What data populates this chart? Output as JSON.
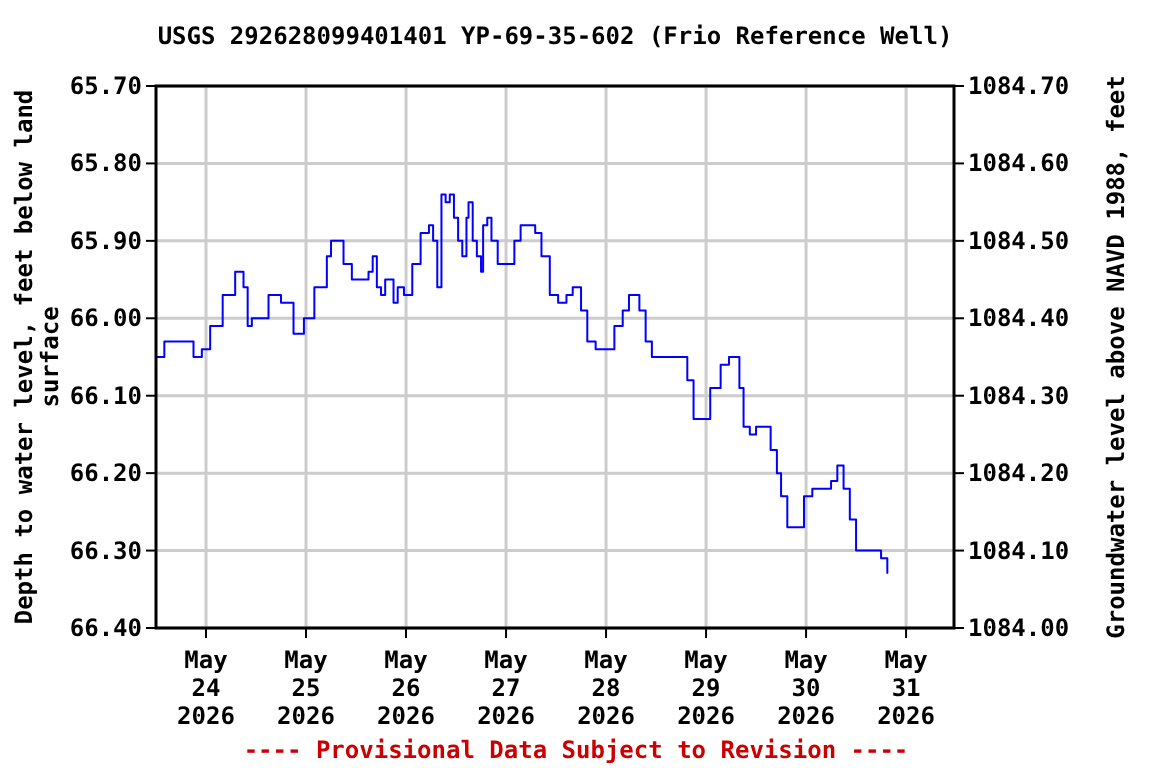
{
  "chart_data": {
    "type": "step",
    "title": "USGS 292628099401401 YP-69-35-602 (Frio Reference Well)",
    "ylabel": "Depth to water level, feet below land surface",
    "y2label": "Groundwater level above NAVD 1988, feet",
    "annotations": [
      "---- Provisional Data Subject to Revision ----"
    ],
    "series": [
      {
        "color": "#0000ff",
        "x": [
          "2026-05-23T12:00",
          "2026-05-23T14:00",
          "2026-05-23T17:00",
          "2026-05-23T19:00",
          "2026-05-23T21:00",
          "2026-05-23T23:00",
          "2026-05-24T01:00",
          "2026-05-24T04:00",
          "2026-05-24T07:00",
          "2026-05-24T08:00",
          "2026-05-24T09:00",
          "2026-05-24T10:00",
          "2026-05-24T11:00",
          "2026-05-24T13:00",
          "2026-05-24T15:00",
          "2026-05-24T16:00",
          "2026-05-24T18:00",
          "2026-05-24T21:00",
          "2026-05-24T22:00",
          "2026-05-24T23:30",
          "2026-05-25T02:00",
          "2026-05-25T05:00",
          "2026-05-25T06:00",
          "2026-05-25T08:00",
          "2026-05-25T09:00",
          "2026-05-25T11:00",
          "2026-05-25T13:00",
          "2026-05-25T15:00",
          "2026-05-25T16:00",
          "2026-05-25T17:00",
          "2026-05-25T18:00",
          "2026-05-25T19:00",
          "2026-05-25T21:00",
          "2026-05-25T22:00",
          "2026-05-25T23:30",
          "2026-05-26T01:30",
          "2026-05-26T03:30",
          "2026-05-26T05:30",
          "2026-05-26T06:30",
          "2026-05-26T07:30",
          "2026-05-26T08:30",
          "2026-05-26T09:30",
          "2026-05-26T10:30",
          "2026-05-26T11:30",
          "2026-05-26T12:30",
          "2026-05-26T13:30",
          "2026-05-26T14:30",
          "2026-05-26T15:00",
          "2026-05-26T16:00",
          "2026-05-26T17:00",
          "2026-05-26T18:00",
          "2026-05-26T18:30",
          "2026-05-26T19:30",
          "2026-05-26T20:30",
          "2026-05-26T22:00",
          "2026-05-27T00:30",
          "2026-05-27T02:00",
          "2026-05-27T03:30",
          "2026-05-27T05:00",
          "2026-05-27T07:00",
          "2026-05-27T08:30",
          "2026-05-27T10:30",
          "2026-05-27T12:30",
          "2026-05-27T14:30",
          "2026-05-27T16:00",
          "2026-05-27T18:00",
          "2026-05-27T19:30",
          "2026-05-27T21:30",
          "2026-05-27T23:30",
          "2026-05-28T02:00",
          "2026-05-28T04:00",
          "2026-05-28T05:30",
          "2026-05-28T07:00",
          "2026-05-28T08:00",
          "2026-05-28T09:30",
          "2026-05-28T11:00",
          "2026-05-28T14:00",
          "2026-05-28T16:30",
          "2026-05-28T18:00",
          "2026-05-28T19:30",
          "2026-05-28T21:00",
          "2026-05-28T23:00",
          "2026-05-29T01:00",
          "2026-05-29T03:30",
          "2026-05-29T05:30",
          "2026-05-29T06:00",
          "2026-05-29T08:00",
          "2026-05-29T09:00",
          "2026-05-29T10:30",
          "2026-05-29T12:00",
          "2026-05-29T14:00",
          "2026-05-29T15:30",
          "2026-05-29T17:00",
          "2026-05-29T18:00",
          "2026-05-29T19:30",
          "2026-05-29T21:30",
          "2026-05-29T23:30",
          "2026-05-30T01:30",
          "2026-05-30T04:00",
          "2026-05-30T06:00",
          "2026-05-30T07:30",
          "2026-05-30T09:00",
          "2026-05-30T10:30",
          "2026-05-30T12:00",
          "2026-05-30T14:00",
          "2026-05-30T16:30",
          "2026-05-30T18:00",
          "2026-05-30T19:30"
        ],
        "values": [
          66.05,
          66.03,
          66.03,
          66.03,
          66.05,
          66.04,
          66.01,
          65.97,
          65.94,
          65.94,
          65.96,
          66.01,
          66.0,
          66.0,
          65.97,
          65.97,
          65.98,
          66.02,
          66.02,
          66.0,
          65.96,
          65.92,
          65.9,
          65.9,
          65.93,
          65.95,
          65.95,
          65.94,
          65.92,
          65.96,
          65.97,
          65.95,
          65.98,
          65.96,
          65.97,
          65.93,
          65.89,
          65.88,
          65.9,
          65.96,
          65.84,
          65.85,
          65.84,
          65.87,
          65.9,
          65.92,
          65.87,
          65.85,
          65.9,
          65.92,
          65.94,
          65.88,
          65.87,
          65.9,
          65.93,
          65.93,
          65.9,
          65.88,
          65.88,
          65.89,
          65.92,
          65.97,
          65.98,
          65.97,
          65.96,
          65.99,
          66.03,
          66.04,
          66.04,
          66.01,
          65.99,
          65.97,
          65.97,
          65.99,
          66.03,
          66.05,
          66.05,
          66.05,
          66.05,
          66.08,
          66.13,
          66.13,
          66.09,
          66.06,
          66.05,
          66.05,
          66.09,
          66.14,
          66.15,
          66.14,
          66.14,
          66.17,
          66.2,
          66.23,
          66.27,
          66.27,
          66.23,
          66.22,
          66.22,
          66.21,
          66.19,
          66.22,
          66.26,
          66.3,
          66.3,
          66.3,
          66.31,
          66.33
        ]
      }
    ],
    "xlim": [
      "2026-05-23T12:00",
      "2026-05-31T11:30"
    ],
    "xticks": [
      {
        "value": "2026-05-24",
        "label": "May 24 2026"
      },
      {
        "value": "2026-05-25",
        "label": "May 25 2026"
      },
      {
        "value": "2026-05-26",
        "label": "May 26 2026"
      },
      {
        "value": "2026-05-27",
        "label": "May 27 2026"
      },
      {
        "value": "2026-05-28",
        "label": "May 28 2026"
      },
      {
        "value": "2026-05-29",
        "label": "May 29 2026"
      },
      {
        "value": "2026-05-30",
        "label": "May 30 2026"
      },
      {
        "value": "2026-05-31",
        "label": "May 31 2026"
      }
    ],
    "ylim": [
      66.4,
      65.7
    ],
    "yticks": [
      {
        "value": 65.7,
        "label": "65.70"
      },
      {
        "value": 65.8,
        "label": "65.80"
      },
      {
        "value": 65.9,
        "label": "65.90"
      },
      {
        "value": 66.0,
        "label": "66.00"
      },
      {
        "value": 66.1,
        "label": "66.10"
      },
      {
        "value": 66.2,
        "label": "66.20"
      },
      {
        "value": 66.3,
        "label": "66.30"
      },
      {
        "value": 66.4,
        "label": "66.40"
      }
    ],
    "y2lim": [
      1084.0,
      1084.7
    ],
    "y2ticks": [
      {
        "value": 1084.0,
        "label": "1084.00"
      },
      {
        "value": 1084.1,
        "label": "1084.10"
      },
      {
        "value": 1084.2,
        "label": "1084.20"
      },
      {
        "value": 1084.3,
        "label": "1084.30"
      },
      {
        "value": 1084.4,
        "label": "1084.40"
      },
      {
        "value": 1084.5,
        "label": "1084.50"
      },
      {
        "value": 1084.6,
        "label": "1084.60"
      },
      {
        "value": 1084.7,
        "label": "1084.70"
      }
    ],
    "grid": true
  }
}
